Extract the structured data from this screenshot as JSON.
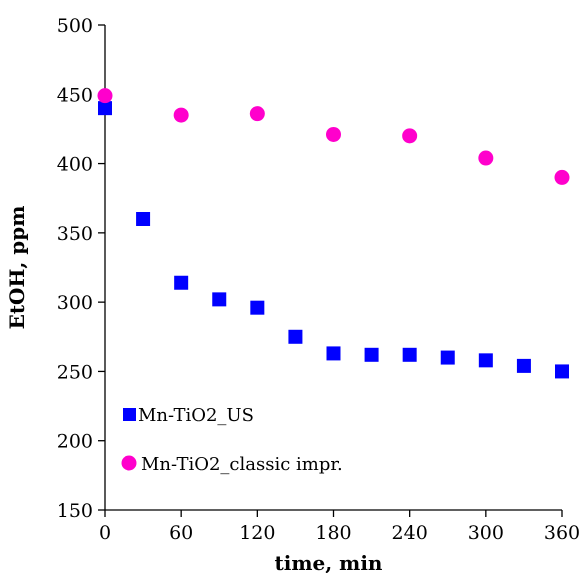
{
  "chart_data": {
    "type": "scatter",
    "xlabel": "time, min",
    "ylabel": "EtOH, ppm",
    "xlim": [
      0,
      360
    ],
    "ylim": [
      150,
      500
    ],
    "xticks": [
      0,
      60,
      120,
      180,
      240,
      300,
      360
    ],
    "yticks": [
      150,
      200,
      250,
      300,
      350,
      400,
      450,
      500
    ],
    "grid": false,
    "legend_position": "bottom-left",
    "series": [
      {
        "name": "Mn-TiO2_US",
        "marker": "square",
        "color": "#0000ff",
        "x": [
          0,
          30,
          60,
          90,
          120,
          150,
          180,
          210,
          240,
          270,
          300,
          330,
          360
        ],
        "y": [
          440,
          360,
          314,
          302,
          296,
          275,
          263,
          262,
          262,
          260,
          258,
          254,
          250
        ]
      },
      {
        "name": "Mn-TiO2_classic impr.",
        "marker": "circle",
        "color": "#ff00cc",
        "x": [
          0,
          60,
          120,
          180,
          240,
          300,
          360
        ],
        "y": [
          449,
          435,
          436,
          421,
          420,
          404,
          390
        ]
      }
    ]
  }
}
